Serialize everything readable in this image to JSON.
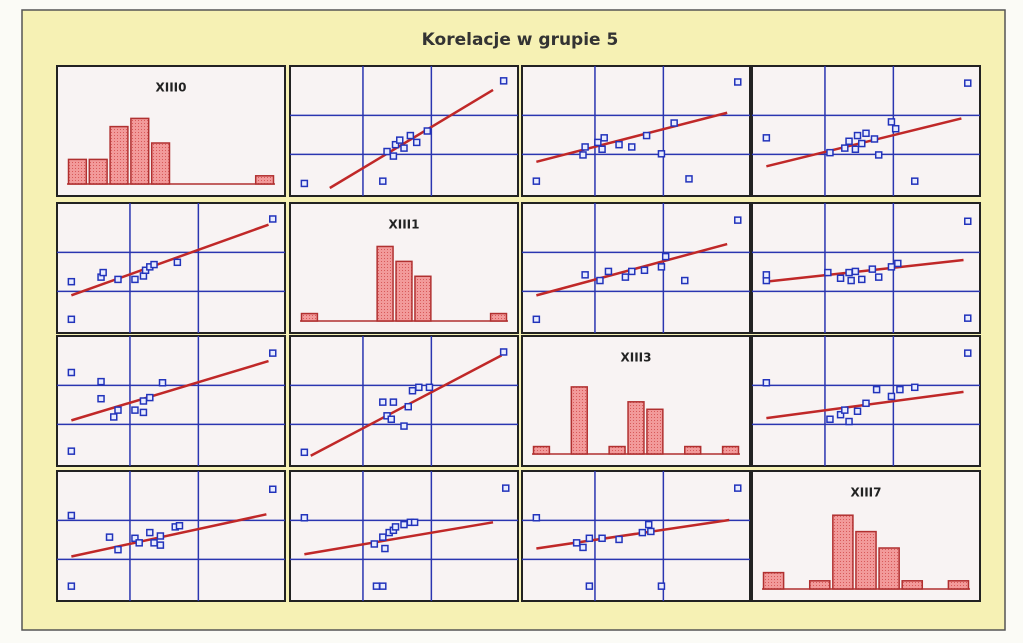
{
  "title": "Korelacje w grupie 5",
  "chart_data": [
    {
      "type": "bar",
      "title": "XIII0",
      "categories": [
        null,
        null,
        null,
        null,
        null,
        null,
        null,
        null,
        null,
        null
      ],
      "values": [
        3,
        3,
        7,
        8,
        5,
        0,
        0,
        0,
        0,
        1
      ],
      "ylim": [
        0,
        10
      ],
      "color": "#e06060"
    },
    {
      "type": "scatter",
      "x": [
        0.3,
        4.0,
        4.2,
        4.5,
        4.6,
        4.8,
        5.0,
        5.3,
        5.6,
        6.1,
        9.7
      ],
      "y": [
        0.4,
        0.6,
        3.2,
        2.8,
        3.8,
        4.2,
        3.5,
        4.6,
        4.0,
        5.0,
        9.4
      ],
      "trend": {
        "x": [
          1.5,
          9.2
        ],
        "y": [
          0,
          8.6
        ]
      },
      "xlim": [
        0,
        10
      ],
      "ylim": [
        0,
        10
      ],
      "color": "#2233bb"
    },
    {
      "type": "scatter",
      "x": [
        0.3,
        2.5,
        2.6,
        3.2,
        3.4,
        3.5,
        4.2,
        4.8,
        5.5,
        6.2,
        6.8,
        7.5,
        9.8
      ],
      "y": [
        0.6,
        2.9,
        3.6,
        4.0,
        3.4,
        4.4,
        3.8,
        3.6,
        4.6,
        3.0,
        5.7,
        0.8,
        9.3
      ],
      "trend": {
        "x": [
          0.3,
          9.3
        ],
        "y": [
          2.3,
          6.6
        ]
      },
      "xlim": [
        0,
        10
      ],
      "ylim": [
        0,
        10
      ],
      "color": "#2233bb"
    },
    {
      "type": "scatter",
      "x": [
        0.3,
        3.3,
        4.0,
        4.2,
        4.5,
        4.6,
        4.8,
        5.0,
        5.4,
        5.6,
        6.2,
        6.4,
        7.3,
        9.8
      ],
      "y": [
        4.4,
        3.1,
        3.5,
        4.1,
        3.4,
        4.6,
        3.9,
        4.8,
        4.3,
        2.9,
        5.8,
        5.2,
        0.6,
        9.2
      ],
      "trend": {
        "x": [
          0.3,
          9.5
        ],
        "y": [
          1.9,
          6.1
        ]
      },
      "xlim": [
        0,
        10
      ],
      "ylim": [
        0,
        10
      ],
      "color": "#2233bb"
    },
    {
      "type": "scatter",
      "x": [
        0.3,
        1.7,
        1.8,
        2.5,
        3.3,
        3.7,
        3.8,
        4.0,
        4.2,
        5.3,
        9.8,
        0.3
      ],
      "y": [
        3.8,
        4.2,
        4.6,
        4.0,
        4.0,
        4.3,
        4.8,
        5.1,
        5.3,
        5.5,
        9.3,
        0.5
      ],
      "trend": {
        "x": [
          0.3,
          9.6
        ],
        "y": [
          2.6,
          8.8
        ]
      },
      "xlim": [
        0,
        10
      ],
      "ylim": [
        0,
        10
      ],
      "color": "#2233bb"
    },
    {
      "type": "bar",
      "title": "XIII1",
      "categories": [
        null,
        null,
        null,
        null,
        null,
        null,
        null,
        null,
        null,
        null,
        null
      ],
      "values": [
        1,
        0,
        0,
        0,
        10,
        8,
        6,
        0,
        0,
        0,
        1
      ],
      "ylim": [
        0,
        11
      ],
      "color": "#e06060"
    },
    {
      "type": "scatter",
      "x": [
        0.3,
        2.6,
        3.3,
        3.7,
        4.5,
        4.8,
        5.4,
        6.2,
        6.4,
        7.3,
        9.8
      ],
      "y": [
        0.5,
        4.4,
        3.9,
        4.7,
        4.2,
        4.7,
        4.8,
        5.1,
        6.0,
        3.9,
        9.2
      ],
      "trend": {
        "x": [
          0.3,
          9.3
        ],
        "y": [
          2.6,
          7.1
        ]
      },
      "xlim": [
        0,
        10
      ],
      "ylim": [
        0,
        10
      ],
      "color": "#2233bb"
    },
    {
      "type": "scatter",
      "x": [
        0.3,
        0.3,
        3.2,
        3.8,
        4.2,
        4.3,
        4.5,
        4.8,
        5.3,
        5.6,
        6.2,
        6.5,
        9.8,
        9.8
      ],
      "y": [
        3.9,
        4.4,
        4.6,
        4.1,
        4.6,
        3.9,
        4.7,
        4.0,
        4.9,
        4.2,
        5.1,
        5.4,
        9.1,
        0.6
      ],
      "trend": {
        "x": [
          0.3,
          9.6
        ],
        "y": [
          3.8,
          5.7
        ]
      },
      "xlim": [
        0,
        10
      ],
      "ylim": [
        0,
        10
      ],
      "color": "#2233bb"
    },
    {
      "type": "scatter",
      "x": [
        0.3,
        0.3,
        1.7,
        1.7,
        2.3,
        2.5,
        3.3,
        3.7,
        3.7,
        4.0,
        4.6,
        9.8
      ],
      "y": [
        0.6,
        7.5,
        6.7,
        5.2,
        3.6,
        4.2,
        4.2,
        4.0,
        5.0,
        5.3,
        6.6,
        9.2
      ],
      "trend": {
        "x": [
          0.3,
          9.6
        ],
        "y": [
          3.3,
          8.5
        ]
      },
      "xlim": [
        0,
        10
      ],
      "ylim": [
        0,
        10
      ],
      "color": "#2233bb"
    },
    {
      "type": "scatter",
      "x": [
        0.3,
        4.0,
        4.2,
        4.4,
        4.5,
        5.0,
        5.2,
        5.4,
        5.7,
        6.2,
        9.7
      ],
      "y": [
        0.5,
        4.9,
        3.7,
        3.4,
        4.9,
        2.8,
        4.5,
        5.9,
        6.2,
        6.2,
        9.3
      ],
      "trend": {
        "x": [
          0.6,
          9.6
        ],
        "y": [
          0.2,
          9.0
        ]
      },
      "xlim": [
        0,
        10
      ],
      "ylim": [
        0,
        10
      ],
      "color": "#2233bb"
    },
    {
      "type": "bar",
      "title": "XIII3",
      "categories": [
        null,
        null,
        null,
        null,
        null,
        null,
        null,
        null,
        null,
        null,
        null
      ],
      "values": [
        1,
        0,
        9,
        0,
        1,
        7,
        6,
        0,
        1,
        0,
        1
      ],
      "ylim": [
        0,
        11
      ],
      "color": "#e06060"
    },
    {
      "type": "scatter",
      "x": [
        0.3,
        3.3,
        3.8,
        4.0,
        4.2,
        4.6,
        5.0,
        5.5,
        6.2,
        6.6,
        7.3,
        9.8
      ],
      "y": [
        6.6,
        3.4,
        3.8,
        4.2,
        3.2,
        4.1,
        4.8,
        6.0,
        5.4,
        6.0,
        6.2,
        9.2
      ],
      "trend": {
        "x": [
          0.3,
          9.6
        ],
        "y": [
          3.5,
          5.8
        ]
      },
      "xlim": [
        0,
        10
      ],
      "ylim": [
        0,
        10
      ],
      "color": "#2233bb"
    },
    {
      "type": "scatter",
      "x": [
        0.3,
        0.3,
        2.1,
        2.5,
        3.3,
        3.5,
        4.0,
        4.2,
        4.5,
        4.5,
        5.2,
        5.4,
        9.8
      ],
      "y": [
        0.6,
        6.8,
        4.9,
        3.8,
        4.8,
        4.4,
        5.3,
        4.4,
        5.0,
        4.2,
        5.8,
        5.9,
        9.1
      ],
      "trend": {
        "x": [
          0.3,
          9.5
        ],
        "y": [
          3.2,
          6.9
        ]
      },
      "xlim": [
        0,
        10
      ],
      "ylim": [
        0,
        10
      ],
      "color": "#2233bb"
    },
    {
      "type": "scatter",
      "x": [
        0.3,
        3.6,
        4.0,
        4.1,
        4.3,
        4.5,
        4.6,
        5.0,
        5.3,
        5.5,
        4.0,
        3.7,
        9.8
      ],
      "y": [
        6.6,
        4.3,
        4.9,
        3.9,
        5.3,
        5.5,
        5.8,
        6.0,
        6.2,
        6.2,
        0.6,
        0.6,
        9.2
      ],
      "trend": {
        "x": [
          0.3,
          9.2
        ],
        "y": [
          3.4,
          6.2
        ]
      },
      "xlim": [
        0,
        10
      ],
      "ylim": [
        0,
        10
      ],
      "color": "#2233bb"
    },
    {
      "type": "scatter",
      "x": [
        0.3,
        2.2,
        2.5,
        2.8,
        3.4,
        4.2,
        5.3,
        5.6,
        5.7,
        6.2,
        9.8,
        2.8
      ],
      "y": [
        6.6,
        4.4,
        4.0,
        4.8,
        4.8,
        4.7,
        5.3,
        6.0,
        5.4,
        0.6,
        9.2,
        0.6
      ],
      "trend": {
        "x": [
          0.3,
          9.4
        ],
        "y": [
          3.9,
          6.4
        ]
      },
      "xlim": [
        0,
        10
      ],
      "ylim": [
        0,
        10
      ],
      "color": "#2233bb"
    },
    {
      "type": "bar",
      "title": "XIII7",
      "categories": [
        null,
        null,
        null,
        null,
        null,
        null,
        null,
        null,
        null
      ],
      "values": [
        2,
        0,
        1,
        9,
        7,
        5,
        1,
        0,
        1
      ],
      "ylim": [
        0,
        10
      ],
      "color": "#e06060"
    }
  ]
}
